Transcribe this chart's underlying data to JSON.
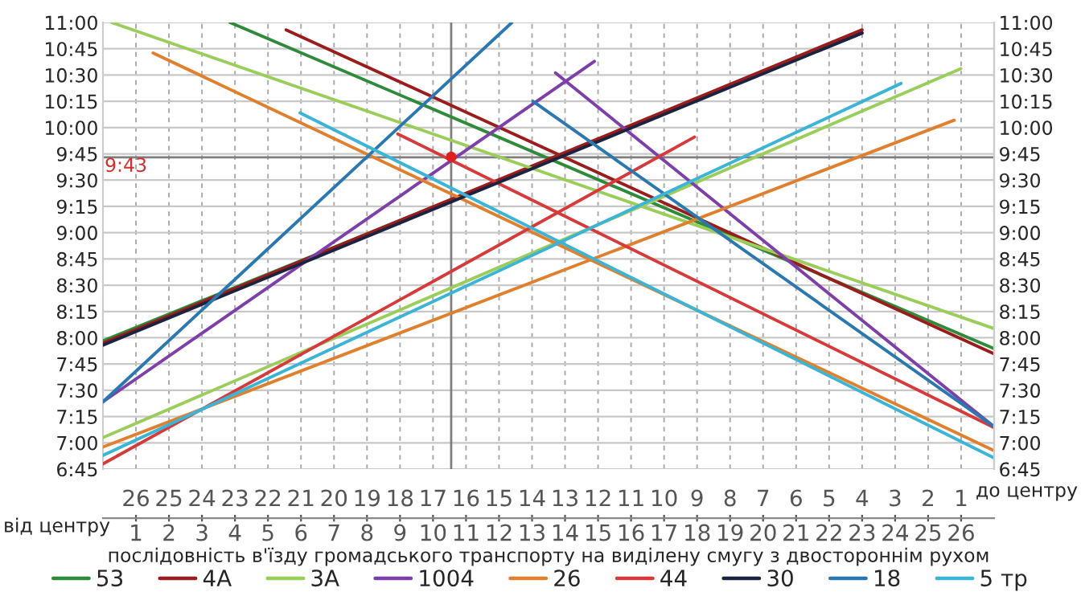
{
  "chart_data": {
    "type": "line",
    "xlabel": "послідовність в'їзду громадського транспорту на виділену смугу з двостороннім рухом",
    "annotations": [
      "від центру",
      "до центру",
      {
        "text": "9:43",
        "x": 0,
        "y": 9.7167
      }
    ],
    "xlim": [
      0,
      27
    ],
    "xticks": [
      1,
      2,
      3,
      4,
      5,
      6,
      7,
      8,
      9,
      10,
      11,
      12,
      13,
      14,
      15,
      16,
      17,
      18,
      19,
      20,
      21,
      22,
      23,
      24,
      25,
      26
    ],
    "x2lim": [
      27,
      0
    ],
    "x2ticks": [
      1,
      2,
      3,
      4,
      5,
      6,
      7,
      8,
      9,
      10,
      11,
      12,
      13,
      14,
      15,
      16,
      17,
      18,
      19,
      20,
      21,
      22,
      23,
      24,
      25,
      26
    ],
    "ylim": [
      6.75,
      11
    ],
    "yticks": [
      {
        "value": 6.75,
        "label": "6:45"
      },
      {
        "value": 7,
        "label": "7:00"
      },
      {
        "value": 7.25,
        "label": "7:15"
      },
      {
        "value": 7.5,
        "label": "7:30"
      },
      {
        "value": 7.75,
        "label": "7:45"
      },
      {
        "value": 8,
        "label": "8:00"
      },
      {
        "value": 8.25,
        "label": "8:15"
      },
      {
        "value": 8.5,
        "label": "8:30"
      },
      {
        "value": 8.75,
        "label": "8:45"
      },
      {
        "value": 9,
        "label": "9:00"
      },
      {
        "value": 9.25,
        "label": "9:15"
      },
      {
        "value": 9.5,
        "label": "9:30"
      },
      {
        "value": 9.75,
        "label": "9:45"
      },
      {
        "value": 10,
        "label": "10:00"
      },
      {
        "value": 10.25,
        "label": "10:15"
      },
      {
        "value": 10.5,
        "label": "10:30"
      },
      {
        "value": 10.75,
        "label": "10:45"
      },
      {
        "value": 11,
        "label": "11:00"
      }
    ],
    "y2lim": [
      6.75,
      11
    ],
    "y2ticks": [
      {
        "value": 6.75,
        "label": "6:45"
      },
      {
        "value": 7,
        "label": "7:00"
      },
      {
        "value": 7.25,
        "label": "7:15"
      },
      {
        "value": 7.5,
        "label": "7:30"
      },
      {
        "value": 7.75,
        "label": "7:45"
      },
      {
        "value": 8,
        "label": "8:00"
      },
      {
        "value": 8.25,
        "label": "8:15"
      },
      {
        "value": 8.5,
        "label": "8:30"
      },
      {
        "value": 8.75,
        "label": "8:45"
      },
      {
        "value": 9,
        "label": "9:00"
      },
      {
        "value": 9.25,
        "label": "9:15"
      },
      {
        "value": 9.5,
        "label": "9:30"
      },
      {
        "value": 9.75,
        "label": "9:45"
      },
      {
        "value": 10,
        "label": "10:00"
      },
      {
        "value": 10.25,
        "label": "10:15"
      },
      {
        "value": 10.5,
        "label": "10:30"
      },
      {
        "value": 10.75,
        "label": "10:45"
      },
      {
        "value": 11,
        "label": "11:00"
      }
    ],
    "grid": true,
    "legend": "bottom",
    "marker": "none",
    "line_style": "solid",
    "ref_lines": [
      {
        "axis": "y",
        "value": 9.7167,
        "color": "#7f7f7f"
      },
      {
        "axis": "x",
        "value": 10.55,
        "color": "#7f7f7f"
      }
    ],
    "series": [
      {
        "name": "53",
        "color": "#2e8b3a",
        "x": [
          0,
          23,
          null,
          3.85,
          26.97
        ],
        "values": [
          7.97,
          10.9,
          null,
          11.0,
          7.9
        ]
      },
      {
        "name": "4А",
        "color": "#9b1c1c",
        "x": [
          0,
          23,
          null,
          5.55,
          26.97
        ],
        "values": [
          7.95,
          10.93,
          null,
          10.93,
          7.85
        ]
      },
      {
        "name": "3А",
        "color": "#9acd5a",
        "x": [
          0,
          25.99,
          null,
          0.26,
          26.97
        ],
        "values": [
          7.05,
          10.56,
          null,
          11.0,
          8.09
        ]
      },
      {
        "name": "1004",
        "color": "#7d3fa8",
        "x": [
          0,
          14.89,
          null,
          13.71,
          26.97
        ],
        "values": [
          7.39,
          10.63,
          null,
          10.52,
          7.16
        ]
      },
      {
        "name": "26",
        "color": "#e0802e",
        "x": [
          0,
          25.79,
          null,
          1.52,
          26.97
        ],
        "values": [
          6.96,
          10.07,
          null,
          10.71,
          6.93
        ]
      },
      {
        "name": "44",
        "color": "#d63a3a",
        "x": [
          0,
          17.92,
          null,
          8.93,
          26.97
        ],
        "values": [
          6.8,
          9.91,
          null,
          9.94,
          7.15
        ]
      },
      {
        "name": "30",
        "color": "#1c2340",
        "x": [
          0,
          23
        ],
        "values": [
          7.93,
          10.9
        ]
      },
      {
        "name": "18",
        "color": "#2b78b0",
        "x": [
          0,
          12.39,
          null,
          13.03,
          26.97
        ],
        "values": [
          7.39,
          11.0,
          null,
          10.25,
          7.16
        ]
      },
      {
        "name": "5 тр",
        "color": "#3cb4d6",
        "x": [
          0,
          24.18,
          null,
          5.97,
          26.97
        ],
        "values": [
          6.88,
          10.42,
          null,
          10.14,
          6.86
        ]
      },
      {
        "type": "scatter",
        "marker": "circle",
        "color": "#e02020",
        "x": [
          10.55
        ],
        "values": [
          9.72
        ]
      }
    ]
  }
}
